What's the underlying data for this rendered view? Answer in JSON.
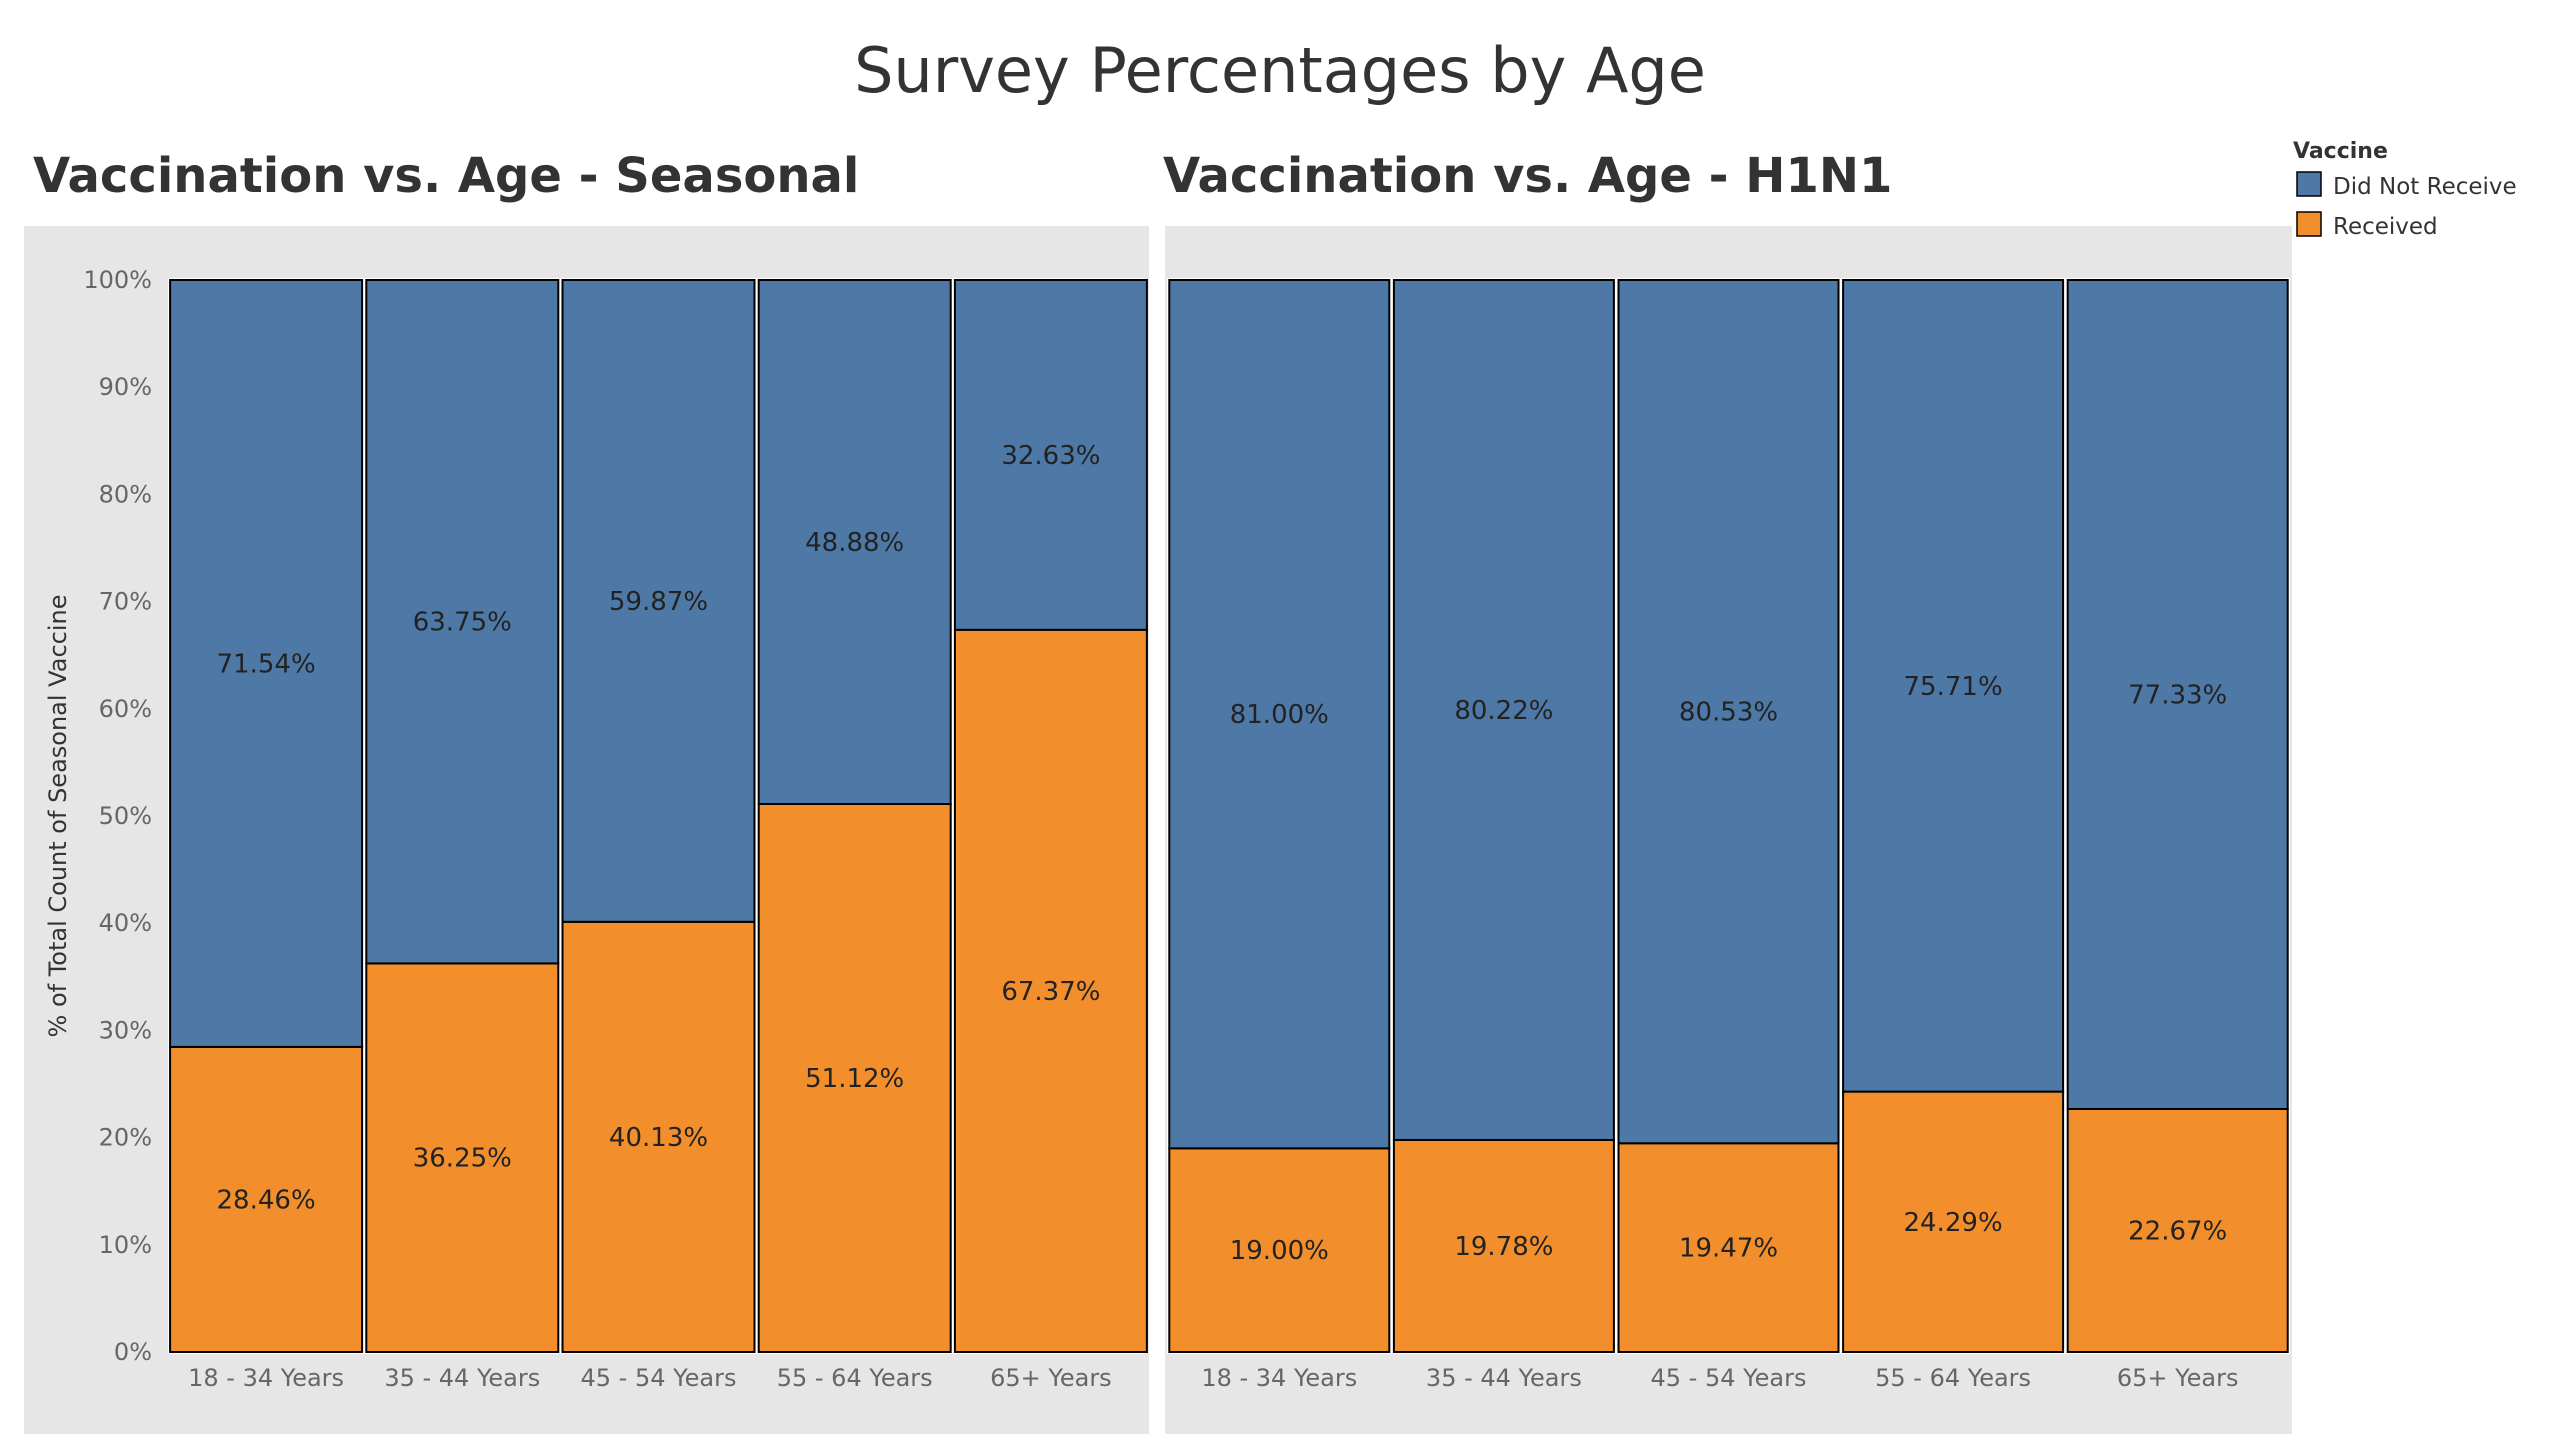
{
  "title": "Survey Percentages by Age",
  "legend": {
    "title": "Vaccine",
    "items": [
      {
        "label": "Did Not Receive",
        "color": "#4e79a7"
      },
      {
        "label": "Received",
        "color": "#f28e2b"
      }
    ]
  },
  "colors": {
    "did_not_receive": "#4e79a7",
    "received": "#f28e2b",
    "panel_background": "#e6e6e6"
  },
  "chart_data": [
    {
      "type": "bar",
      "stacked": true,
      "title": "Vaccination vs. Age - Seasonal",
      "ylabel": "% of Total Count of Seasonal Vaccine",
      "xlabel": "",
      "ylim": [
        0,
        100
      ],
      "yticks": [
        "0%",
        "10%",
        "20%",
        "30%",
        "40%",
        "50%",
        "60%",
        "70%",
        "80%",
        "90%",
        "100%"
      ],
      "categories": [
        "18 - 34 Years",
        "35 - 44 Years",
        "45 - 54 Years",
        "55 - 64 Years",
        "65+ Years"
      ],
      "series": [
        {
          "name": "Received",
          "values": [
            28.46,
            36.25,
            40.13,
            51.12,
            67.37
          ],
          "labels": [
            "28.46%",
            "36.25%",
            "40.13%",
            "51.12%",
            "67.37%"
          ]
        },
        {
          "name": "Did Not Receive",
          "values": [
            71.54,
            63.75,
            59.87,
            48.88,
            32.63
          ],
          "labels": [
            "71.54%",
            "63.75%",
            "59.87%",
            "48.88%",
            "32.63%"
          ]
        }
      ]
    },
    {
      "type": "bar",
      "stacked": true,
      "title": "Vaccination vs. Age - H1N1",
      "ylabel": "",
      "xlabel": "",
      "ylim": [
        0,
        100
      ],
      "categories": [
        "18 - 34 Years",
        "35 - 44 Years",
        "45 - 54 Years",
        "55 - 64 Years",
        "65+ Years"
      ],
      "series": [
        {
          "name": "Received",
          "values": [
            19.0,
            19.78,
            19.47,
            24.29,
            22.67
          ],
          "labels": [
            "19.00%",
            "19.78%",
            "19.47%",
            "24.29%",
            "22.67%"
          ]
        },
        {
          "name": "Did Not Receive",
          "values": [
            81.0,
            80.22,
            80.53,
            75.71,
            77.33
          ],
          "labels": [
            "81.00%",
            "80.22%",
            "80.53%",
            "75.71%",
            "77.33%"
          ]
        }
      ]
    }
  ]
}
